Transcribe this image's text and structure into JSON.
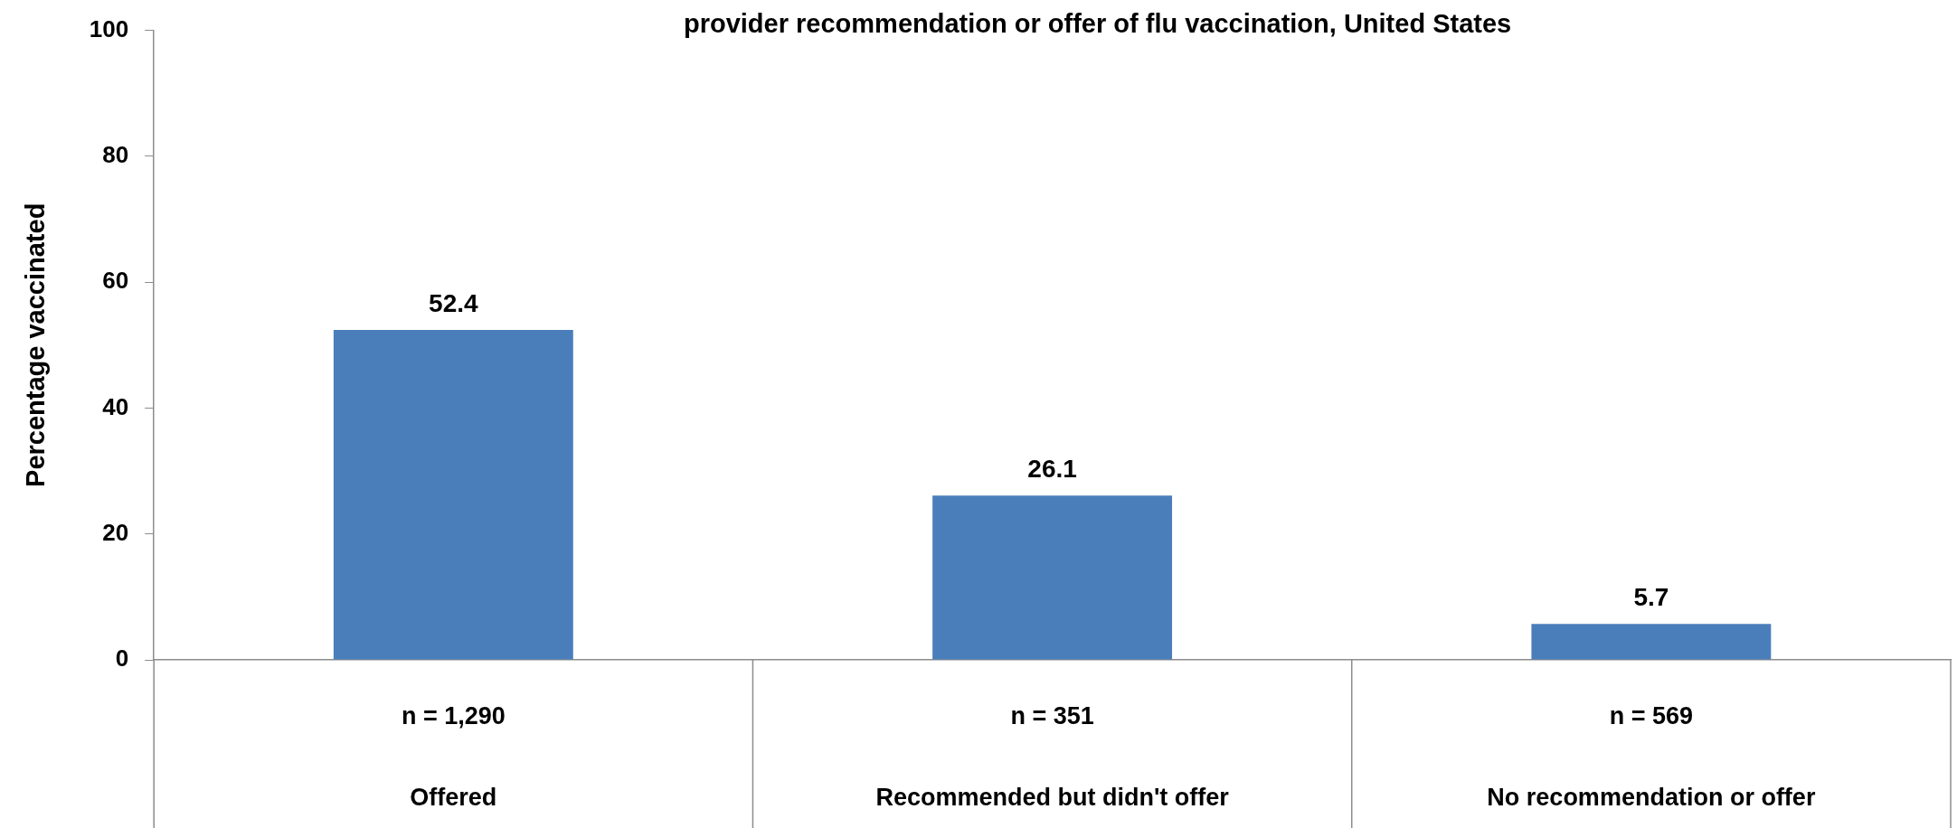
{
  "chart_data": {
    "type": "bar",
    "title": "provider recommendation or offer of flu vaccination, United States",
    "ylabel": "Percentage vaccinated",
    "categories": [
      "Offered",
      "Recommended but didn't offer",
      "No recommendation or offer"
    ],
    "values": [
      52.4,
      26.1,
      5.7
    ],
    "color": "#4a7ebb",
    "data_labels": true,
    "ylim": [
      0,
      100
    ],
    "yticks": [
      0,
      20,
      40,
      60,
      80,
      100
    ],
    "grid": false,
    "legend": false,
    "annotations": [
      "n = 1,290",
      "n = 351",
      "n = 569"
    ]
  }
}
